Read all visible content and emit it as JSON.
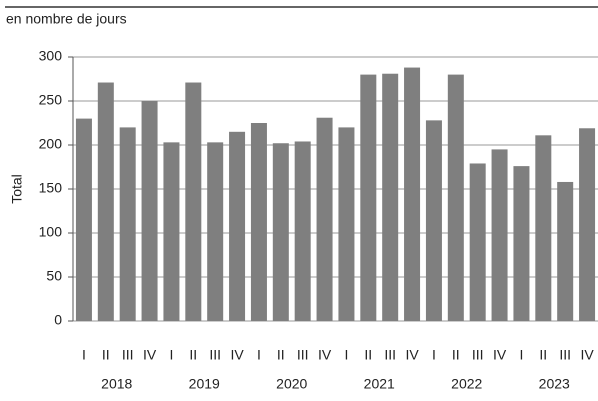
{
  "chart_data": {
    "type": "bar",
    "subtitle": "en nombre de jours",
    "y_label": "Total",
    "categories": [
      "I",
      "II",
      "III",
      "IV",
      "I",
      "II",
      "III",
      "IV",
      "I",
      "II",
      "III",
      "IV",
      "I",
      "II",
      "III",
      "IV",
      "I",
      "II",
      "III",
      "IV",
      "I",
      "II",
      "III",
      "IV"
    ],
    "groups": [
      "2018",
      "2019",
      "2020",
      "2021",
      "2022",
      "2023"
    ],
    "values": [
      230,
      271,
      220,
      250,
      203,
      271,
      203,
      215,
      225,
      202,
      204,
      231,
      220,
      280,
      281,
      288,
      228,
      280,
      179,
      195,
      176,
      211,
      158,
      219
    ],
    "color": "#7f7f7f",
    "ylim": [
      0,
      300
    ],
    "yticks": [
      0,
      50,
      100,
      150,
      200,
      250,
      300
    ],
    "grid": true
  }
}
